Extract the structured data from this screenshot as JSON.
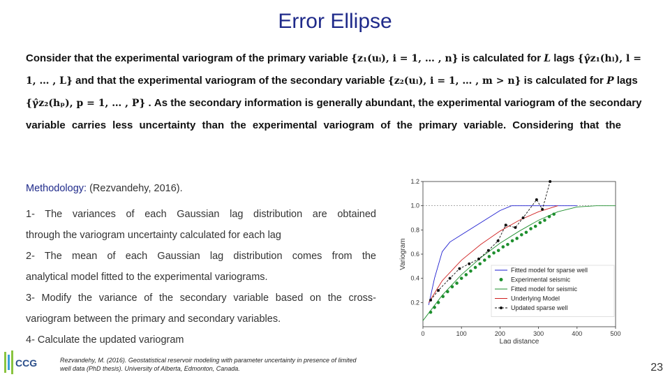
{
  "title": "Error Ellipse",
  "intro": {
    "line1": [
      "Consider that the experimental variogram of the primary variable ",
      "{z₁(uᵢ), i = 1, … , n}",
      " is calculated for ",
      "L",
      " lags ",
      "{γ̂z₁(hₗ), l ="
    ],
    "line2": [
      "1, … , L}",
      " and that the experimental variogram of the secondary variable ",
      "{z₂(uₗ), i = 1, … , m > n}",
      " is calculated for ",
      "P",
      " lags"
    ],
    "line3": [
      "{γ̂z₂(hₚ), p = 1, … , P}",
      " . As the secondary information is generally abundant, the experimental variogram of the secondary"
    ],
    "line4": "variable carries less uncertainty than the experimental variogram of the primary variable. Considering that the"
  },
  "methodology": {
    "heading_label": "Methodology:",
    "heading_ref": " (Rezvandehy, 2016).",
    "step1_a": "1- The variances of each Gaussian lag distribution are obtained",
    "step1_b": "through  the variogram uncertainty calculated for each lag",
    "step2_a": "2- The mean of each Gaussian lag distribution comes from the",
    "step2_b": "analytical model fitted to the experimental variograms.",
    "step3_a": "3- Modify the variance of the secondary variable based on the cross-",
    "step3_b": "variogram between the primary and secondary variables.",
    "step4": "4- Calculate the updated variogram"
  },
  "reference": {
    "line1": "Rezvandehy, M. (2016). Geostatistical reservoir modeling with parameter uncertainty in presence of limited",
    "line2": "well data (PhD thesis). University of Alberta, Edmonton, Canada."
  },
  "logo_text": "CCG",
  "page_number": "23",
  "chart_data": {
    "type": "line",
    "xlabel": "Lag distance",
    "ylabel": "Variogram",
    "xlim": [
      0,
      500
    ],
    "ylim": [
      0,
      1.2
    ],
    "xticks": [
      "0",
      "100",
      "200",
      "300",
      "400",
      "500"
    ],
    "yticks": [
      "0.2",
      "0.4",
      "0.6",
      "0.8",
      "1.0",
      "1.2"
    ],
    "sill": 1.0,
    "legend_position": "bottom-right",
    "series": [
      {
        "name": "Fitted model for sparse well",
        "color": "#1f1fd0",
        "style": "solid",
        "x": [
          15,
          30,
          50,
          70,
          100,
          130,
          160,
          200,
          230,
          260,
          400
        ],
        "y": [
          0.18,
          0.4,
          0.62,
          0.7,
          0.76,
          0.82,
          0.88,
          0.96,
          1.0,
          1.0,
          1.0
        ]
      },
      {
        "name": "Experimental seismic",
        "color": "#1e8f2e",
        "style": "dots",
        "x": [
          20,
          30,
          40,
          52,
          64,
          76,
          88,
          100,
          112,
          124,
          136,
          148,
          160,
          172,
          184,
          196,
          208,
          220,
          232,
          244,
          256,
          268,
          280,
          292,
          304,
          316,
          328,
          340
        ],
        "y": [
          0.12,
          0.16,
          0.2,
          0.25,
          0.29,
          0.33,
          0.36,
          0.4,
          0.43,
          0.46,
          0.49,
          0.52,
          0.55,
          0.58,
          0.61,
          0.63,
          0.66,
          0.68,
          0.71,
          0.73,
          0.76,
          0.78,
          0.81,
          0.83,
          0.86,
          0.88,
          0.91,
          0.93
        ]
      },
      {
        "name": "Fitted model for seismic",
        "color": "#1e8f2e",
        "style": "solid",
        "x": [
          0,
          50,
          100,
          150,
          200,
          250,
          300,
          350,
          400,
          450,
          500
        ],
        "y": [
          0.05,
          0.26,
          0.43,
          0.57,
          0.69,
          0.79,
          0.88,
          0.95,
          0.99,
          1.0,
          1.0
        ]
      },
      {
        "name": "Underlying Model",
        "color": "#d02020",
        "style": "solid",
        "x": [
          15,
          50,
          100,
          150,
          200,
          250,
          300,
          350
        ],
        "y": [
          0.2,
          0.38,
          0.55,
          0.68,
          0.79,
          0.88,
          0.95,
          1.0
        ]
      },
      {
        "name": "Updated sparse well",
        "color": "#111111",
        "style": "dash-dot",
        "x": [
          20,
          40,
          70,
          95,
          120,
          145,
          170,
          195,
          215,
          240,
          260,
          295,
          310,
          330
        ],
        "y": [
          0.22,
          0.3,
          0.4,
          0.48,
          0.52,
          0.56,
          0.63,
          0.71,
          0.84,
          0.82,
          0.9,
          1.05,
          0.97,
          1.2
        ]
      }
    ]
  },
  "colors": {
    "title": "#1f2a8a",
    "accent": "#1f2a8a"
  }
}
